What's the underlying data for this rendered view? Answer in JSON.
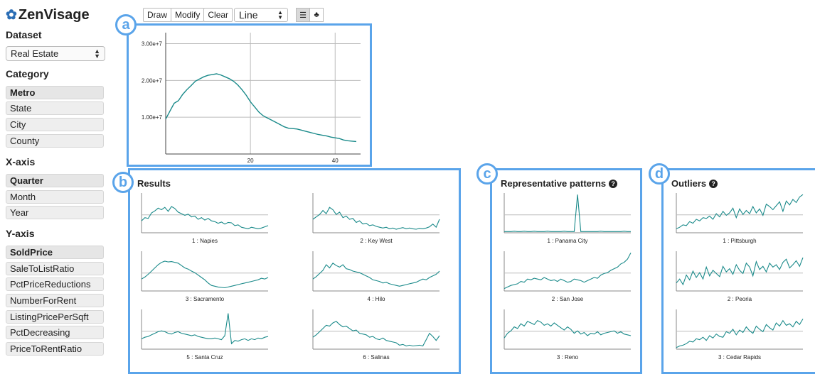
{
  "app": {
    "title": "ZenVisage"
  },
  "sidebar": {
    "dataset_title": "Dataset",
    "dataset_value": "Real Estate",
    "category_title": "Category",
    "category_items": [
      {
        "label": "Metro",
        "active": true
      },
      {
        "label": "State",
        "active": false
      },
      {
        "label": "City",
        "active": false
      },
      {
        "label": "County",
        "active": false
      }
    ],
    "xaxis_title": "X-axis",
    "xaxis_items": [
      {
        "label": "Quarter",
        "active": true
      },
      {
        "label": "Month",
        "active": false
      },
      {
        "label": "Year",
        "active": false
      }
    ],
    "yaxis_title": "Y-axis",
    "yaxis_items": [
      {
        "label": "SoldPrice",
        "active": true
      },
      {
        "label": "SaleToListRatio",
        "active": false
      },
      {
        "label": "PctPriceReductions",
        "active": false
      },
      {
        "label": "NumberForRent",
        "active": false
      },
      {
        "label": "ListingPricePerSqft",
        "active": false
      },
      {
        "label": "PctDecreasing",
        "active": false
      },
      {
        "label": "PriceToRentRatio",
        "active": false
      }
    ]
  },
  "toolbar": {
    "draw": "Draw",
    "modify": "Modify",
    "clear": "Clear",
    "chart_type": "Line",
    "list_icon": "list-icon",
    "tree_icon": "tree-icon"
  },
  "markers": {
    "a": "a",
    "b": "b",
    "c": "c",
    "d": "d"
  },
  "panels": {
    "results_title": "Results",
    "representative_title": "Representative patterns",
    "outliers_title": "Outliers",
    "help_icon": "question-circle-icon"
  },
  "colors": {
    "accent": "#5aa4ea",
    "line": "#1a8a8a",
    "brand_icon": "#2a6db5"
  },
  "chart_data": [
    {
      "type": "line",
      "title": "",
      "xlabel": "",
      "ylabel": "",
      "xlim": [
        0,
        46
      ],
      "ylim": [
        0,
        33000000.0
      ],
      "xticks": [
        20,
        40
      ],
      "yticks": [
        10000000,
        20000000,
        30000000
      ],
      "ytick_labels": [
        "1.00e+7",
        "2.00e+7",
        "3.00e+7"
      ],
      "grid": true,
      "x": [
        0,
        1,
        2,
        3,
        4,
        5,
        6,
        7,
        8,
        9,
        10,
        11,
        12,
        13,
        14,
        15,
        16,
        17,
        18,
        19,
        20,
        21,
        22,
        23,
        24,
        25,
        26,
        27,
        28,
        29,
        30,
        31,
        32,
        33,
        34,
        35,
        36,
        37,
        38,
        39,
        40,
        41,
        42,
        43,
        44,
        45
      ],
      "y": [
        9500000.0,
        11700000.0,
        13800000.0,
        14500000.0,
        16200000.0,
        17500000.0,
        18600000.0,
        19800000.0,
        20400000.0,
        21000000.0,
        21400000.0,
        21600000.0,
        21800000.0,
        21500000.0,
        21000000.0,
        20500000.0,
        19800000.0,
        18800000.0,
        17500000.0,
        16000000.0,
        14200000.0,
        12800000.0,
        11400000.0,
        10400000.0,
        9800000.0,
        9200000.0,
        8600000.0,
        8000000.0,
        7400000.0,
        7000000.0,
        6900000.0,
        6800000.0,
        6500000.0,
        6200000.0,
        5900000.0,
        5600000.0,
        5300000.0,
        5100000.0,
        4900000.0,
        4600000.0,
        4400000.0,
        4200000.0,
        3800000.0,
        3600000.0,
        3500000.0,
        3400000.0
      ]
    },
    {
      "type": "line",
      "group": "Results",
      "small_multiples": [
        {
          "label": "1 : Napies",
          "y": [
            30,
            38,
            36,
            50,
            55,
            62,
            58,
            64,
            54,
            66,
            61,
            52,
            48,
            44,
            47,
            40,
            42,
            34,
            38,
            32,
            36,
            30,
            28,
            24,
            27,
            22,
            26,
            25,
            18,
            20,
            14,
            12,
            10,
            14,
            12,
            10,
            12,
            15,
            18
          ]
        },
        {
          "label": "2 : Key West",
          "y": [
            34,
            40,
            46,
            56,
            48,
            64,
            58,
            46,
            52,
            38,
            42,
            34,
            36,
            26,
            30,
            22,
            24,
            18,
            20,
            16,
            14,
            12,
            14,
            10,
            12,
            9,
            11,
            13,
            10,
            12,
            10,
            9,
            11,
            10,
            12,
            15,
            22,
            14,
            34
          ]
        },
        {
          "label": "3 : Sacramento",
          "y": [
            30,
            35,
            42,
            50,
            58,
            66,
            72,
            75,
            73,
            74,
            72,
            70,
            64,
            58,
            55,
            50,
            46,
            40,
            34,
            28,
            20,
            14,
            12,
            10,
            9,
            8,
            10,
            12,
            14,
            16,
            18,
            20,
            22,
            24,
            26,
            28,
            32,
            30,
            34
          ]
        },
        {
          "label": "4 : Hilo",
          "y": [
            30,
            36,
            44,
            52,
            66,
            58,
            70,
            64,
            60,
            66,
            56,
            54,
            50,
            48,
            46,
            42,
            38,
            34,
            28,
            26,
            24,
            20,
            22,
            18,
            16,
            14,
            12,
            14,
            16,
            18,
            20,
            22,
            26,
            30,
            28,
            34,
            38,
            42,
            50
          ]
        },
        {
          "label": "5 : Santa Cruz",
          "y": [
            26,
            30,
            32,
            36,
            40,
            44,
            46,
            44,
            40,
            38,
            42,
            44,
            40,
            38,
            36,
            34,
            36,
            32,
            30,
            28,
            26,
            26,
            28,
            26,
            24,
            34,
            90,
            14,
            22,
            20,
            24,
            26,
            22,
            26,
            24,
            28,
            26,
            30,
            32
          ]
        },
        {
          "label": "6 : Salinas",
          "y": [
            30,
            36,
            44,
            52,
            60,
            58,
            66,
            70,
            62,
            56,
            58,
            52,
            46,
            48,
            40,
            38,
            36,
            30,
            32,
            26,
            24,
            28,
            22,
            20,
            18,
            16,
            10,
            12,
            8,
            10,
            8,
            9,
            10,
            8,
            24,
            40,
            32,
            22,
            34
          ]
        }
      ]
    },
    {
      "type": "line",
      "group": "Representative patterns",
      "small_multiples": [
        {
          "label": "1 : Panama City",
          "y": [
            3,
            3,
            3,
            4,
            3,
            3,
            4,
            3,
            3,
            4,
            3,
            3,
            3,
            4,
            3,
            3,
            3,
            3,
            4,
            3,
            3,
            3,
            96,
            3,
            3,
            3,
            3,
            3,
            3,
            4,
            3,
            3,
            3,
            3,
            3,
            3,
            4,
            3,
            3
          ]
        },
        {
          "label": "2 : San Jose",
          "y": [
            6,
            10,
            14,
            16,
            18,
            24,
            22,
            30,
            28,
            32,
            30,
            28,
            34,
            30,
            26,
            28,
            24,
            30,
            26,
            22,
            24,
            30,
            28,
            26,
            22,
            26,
            30,
            34,
            32,
            40,
            44,
            46,
            52,
            56,
            60,
            68,
            72,
            80,
            96
          ]
        },
        {
          "label": "3 : Reno",
          "y": [
            28,
            40,
            46,
            56,
            52,
            64,
            58,
            70,
            66,
            62,
            72,
            68,
            60,
            64,
            58,
            66,
            60,
            54,
            48,
            56,
            50,
            40,
            46,
            38,
            42,
            34,
            40,
            38,
            44,
            36,
            40,
            42,
            44,
            46,
            40,
            44,
            38,
            36,
            34
          ]
        }
      ]
    },
    {
      "type": "line",
      "group": "Outliers",
      "small_multiples": [
        {
          "label": "1 : Pittsburgh",
          "y": [
            10,
            14,
            20,
            18,
            28,
            24,
            34,
            30,
            38,
            36,
            42,
            34,
            48,
            40,
            54,
            44,
            50,
            62,
            38,
            60,
            46,
            56,
            48,
            66,
            50,
            60,
            44,
            72,
            66,
            58,
            68,
            78,
            54,
            80,
            70,
            84,
            76,
            90,
            96
          ]
        },
        {
          "label": "2 : Peoria",
          "y": [
            20,
            30,
            16,
            40,
            28,
            50,
            34,
            46,
            30,
            60,
            38,
            52,
            44,
            36,
            62,
            48,
            56,
            42,
            66,
            52,
            44,
            70,
            60,
            38,
            74,
            54,
            62,
            48,
            70,
            60,
            66,
            54,
            72,
            80,
            58,
            66,
            76,
            62,
            84
          ]
        },
        {
          "label": "3 : Cedar Rapids",
          "y": [
            4,
            8,
            10,
            14,
            20,
            18,
            26,
            24,
            30,
            22,
            34,
            28,
            38,
            32,
            30,
            44,
            40,
            50,
            36,
            48,
            42,
            56,
            46,
            40,
            58,
            50,
            44,
            62,
            54,
            48,
            66,
            58,
            72,
            60,
            64,
            56,
            70,
            62,
            76
          ]
        }
      ]
    }
  ]
}
